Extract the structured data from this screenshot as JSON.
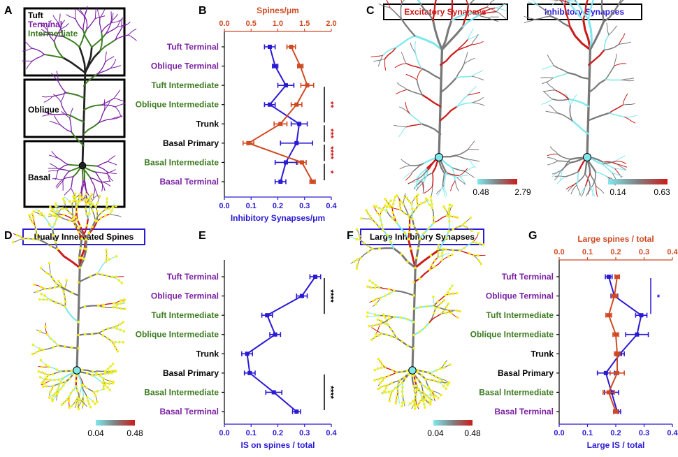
{
  "colors": {
    "purple": "#7a1fa2",
    "green": "#3f7d23",
    "black": "#000000",
    "blue": "#2a1ad4",
    "orange": "#cf4a22",
    "red": "#cc1b1b",
    "cyan": "#7fe8ee",
    "yellow": "#f2ee1c"
  },
  "panel_letters": {
    "a": "A",
    "b": "B",
    "c": "C",
    "d": "D",
    "e": "E",
    "f": "F",
    "g": "G"
  },
  "panel_a": {
    "legend": [
      {
        "label": "Tuft",
        "color": "#000000"
      },
      {
        "label": "Terminal",
        "color": "#7a1fa2"
      },
      {
        "label": "Intermediate",
        "color": "#3f7d23"
      }
    ],
    "regions": [
      "Oblique",
      "Basal"
    ]
  },
  "panel_c": {
    "title_left": "Excitatory Synapses",
    "title_right": "Inhibitory Synapses"
  },
  "panel_d": {
    "title": "Dually Innervated Spines"
  },
  "panel_f": {
    "title": "Large Inhibitory Synapses"
  },
  "colorbars": {
    "c_left": {
      "min": "0.48",
      "max": "2.79"
    },
    "c_right": {
      "min": "0.14",
      "max": "0.63"
    },
    "d": {
      "min": "0.04",
      "max": "0.48"
    },
    "f": {
      "min": "0.04",
      "max": "0.48"
    }
  },
  "chart_data": [
    {
      "panel": "B",
      "type": "line",
      "categories": [
        "Tuft Terminal",
        "Oblique Terminal",
        "Tuft Intermediate",
        "Oblique Intermediate",
        "Trunk",
        "Basal Primary",
        "Basal Intermediate",
        "Basal Terminal"
      ],
      "category_colors": [
        "#7a1fa2",
        "#7a1fa2",
        "#3f7d23",
        "#3f7d23",
        "#000000",
        "#000000",
        "#3f7d23",
        "#7a1fa2"
      ],
      "xlabel_bottom": "Inhibitory Synapses/μm",
      "xlim_bottom": [
        0,
        0.4
      ],
      "xticks_bottom": [
        "0.0",
        "0.1",
        "0.2",
        "0.3",
        "0.4"
      ],
      "xlabel_top": "Spines/μm",
      "xlim_top": [
        0,
        2.0
      ],
      "xticks_top": [
        "0.0",
        "0.5",
        "1.0",
        "1.5",
        "2.0"
      ],
      "series": [
        {
          "axis": "bottom",
          "color": "#2a1ad4",
          "values": [
            0.17,
            0.19,
            0.23,
            0.17,
            0.28,
            0.27,
            0.23,
            0.21
          ],
          "errors": [
            0.02,
            0.01,
            0.03,
            0.02,
            0.03,
            0.06,
            0.04,
            0.02
          ]
        },
        {
          "axis": "top",
          "color": "#cf4a22",
          "values": [
            1.25,
            1.42,
            1.55,
            1.35,
            1.05,
            0.45,
            1.45,
            1.65
          ],
          "errors": [
            0.08,
            0.05,
            0.12,
            0.1,
            0.12,
            0.1,
            0.08,
            0.05
          ]
        }
      ],
      "significance": [
        {
          "label": "**",
          "from": 2,
          "to": 4
        },
        {
          "label": "***",
          "from": 4,
          "to": 5
        },
        {
          "label": "****",
          "from": 5,
          "to": 6
        },
        {
          "label": "*",
          "from": 6,
          "to": 7
        }
      ]
    },
    {
      "panel": "E",
      "type": "line",
      "categories": [
        "Tuft Terminal",
        "Oblique Terminal",
        "Tuft Intermediate",
        "Oblique Intermediate",
        "Trunk",
        "Basal Primary",
        "Basal Intermediate",
        "Basal Terminal"
      ],
      "category_colors": [
        "#7a1fa2",
        "#7a1fa2",
        "#3f7d23",
        "#3f7d23",
        "#000000",
        "#000000",
        "#3f7d23",
        "#7a1fa2"
      ],
      "xlabel_bottom": "IS on spines / total",
      "xlim_bottom": [
        0,
        0.4
      ],
      "xticks_bottom": [
        "0.0",
        "0.1",
        "0.2",
        "0.3",
        "0.4"
      ],
      "series": [
        {
          "axis": "bottom",
          "color": "#2a1ad4",
          "values": [
            0.34,
            0.29,
            0.16,
            0.19,
            0.085,
            0.095,
            0.185,
            0.27
          ],
          "errors": [
            0.02,
            0.02,
            0.02,
            0.02,
            0.02,
            0.02,
            0.03,
            0.015
          ]
        }
      ],
      "significance": [
        {
          "label": "****",
          "from": 0,
          "to": 2
        },
        {
          "label": "****",
          "from": 5,
          "to": 7
        }
      ]
    },
    {
      "panel": "G",
      "type": "line",
      "categories": [
        "Tuft Terminal",
        "Oblique Terminal",
        "Tuft Intermediate",
        "Oblique Intermediate",
        "Trunk",
        "Basal Primary",
        "Basal Intermediate",
        "Basal Terminal"
      ],
      "category_colors": [
        "#7a1fa2",
        "#7a1fa2",
        "#3f7d23",
        "#3f7d23",
        "#000000",
        "#000000",
        "#3f7d23",
        "#7a1fa2"
      ],
      "xlabel_bottom": "Large IS / total",
      "xlim_bottom": [
        0,
        0.4
      ],
      "xticks_bottom": [
        "0.0",
        "0.1",
        "0.2",
        "0.3",
        "0.4"
      ],
      "xlabel_top": "Large spines / total",
      "xlim_top": [
        0,
        0.4
      ],
      "xticks_top": [
        "0.0",
        "0.1",
        "0.2",
        "0.3",
        "0.4"
      ],
      "series": [
        {
          "axis": "bottom",
          "color": "#2a1ad4",
          "values": [
            0.175,
            0.195,
            0.29,
            0.275,
            0.215,
            0.165,
            0.185,
            0.205
          ],
          "errors": [
            0.012,
            0.012,
            0.02,
            0.04,
            0.015,
            0.03,
            0.025,
            0.012
          ]
        },
        {
          "axis": "top",
          "color": "#cf4a22",
          "values": [
            0.205,
            0.195,
            0.175,
            0.2,
            0.205,
            0.205,
            0.175,
            0.2
          ],
          "errors": [
            0.008,
            0.01,
            0.01,
            0.01,
            0.01,
            0.025,
            0.02,
            0.008
          ]
        }
      ],
      "significance": [
        {
          "label": "*",
          "from": 0,
          "to": 2,
          "color": "#2a1ad4"
        }
      ]
    }
  ]
}
